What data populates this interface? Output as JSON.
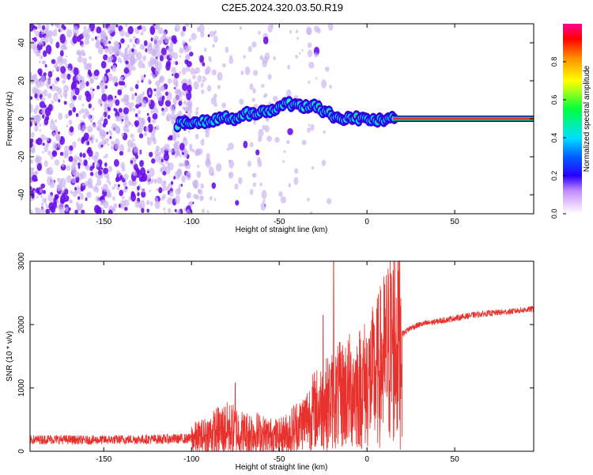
{
  "title": "C2E5.2024.320.03.50.R19",
  "colors": {
    "snr_line": "#e8302c",
    "ridge_core": "#e8302c",
    "scatter_light": "#c9b0f0",
    "scatter_dark": "#6a10e8"
  },
  "chart_data": [
    {
      "type": "heatmap",
      "title": "C2E5.2024.320.03.50.R19",
      "xlabel": "Height of straight line (km)",
      "ylabel": "Frequency (Hz)",
      "xlim": [
        -192,
        95
      ],
      "ylim": [
        -50,
        50
      ],
      "x_ticks": [
        -150,
        -100,
        -50,
        0,
        50
      ],
      "x_tick_labels": [
        "-150",
        "-100",
        "-50",
        "0",
        "50"
      ],
      "y_ticks": [
        -40,
        -20,
        0,
        20,
        40
      ],
      "y_tick_labels": [
        "-40",
        "-20",
        "0",
        "20",
        "40"
      ],
      "colorbar": {
        "label": "Normalized spectral amplitude",
        "range": [
          0,
          1
        ],
        "ticks": [
          0.0,
          0.2,
          0.4,
          0.6,
          0.8
        ],
        "tick_labels": [
          "0.0",
          "0.2",
          "0.4",
          "0.6",
          "0.8"
        ]
      },
      "ridge": {
        "description": "dominant frequency ridge",
        "x": [
          -108,
          -100,
          -95,
          -90,
          -85,
          -80,
          -75,
          -70,
          -65,
          -60,
          -55,
          -50,
          -45,
          -40,
          -35,
          -30,
          -25,
          -20,
          -15,
          -10,
          -5,
          0,
          5,
          10,
          15,
          20,
          50,
          95
        ],
        "y": [
          -3,
          -2,
          -1,
          -2,
          0,
          1,
          0,
          3,
          2,
          4,
          3,
          6,
          8,
          7,
          6,
          8,
          4,
          2,
          0,
          1,
          0,
          0,
          -1,
          -1,
          0,
          0,
          0,
          0
        ]
      }
    },
    {
      "type": "line",
      "xlabel": "Height of straight line (km)",
      "ylabel": "SNR (10 * v/v)",
      "xlim": [
        -192,
        95
      ],
      "ylim": [
        0,
        3000
      ],
      "x_ticks": [
        -150,
        -100,
        -50,
        0,
        50
      ],
      "x_tick_labels": [
        "-150",
        "-100",
        "-50",
        "0",
        "50"
      ],
      "y_ticks": [
        0,
        1000,
        2000,
        3000
      ],
      "y_tick_labels": [
        "0",
        "1000",
        "2000",
        "3000"
      ],
      "series": [
        {
          "name": "SNR",
          "x": [
            -192,
            -180,
            -160,
            -140,
            -120,
            -100,
            -95,
            -90,
            -85,
            -80,
            -75,
            -70,
            -65,
            -60,
            -55,
            -50,
            -45,
            -40,
            -35,
            -30,
            -25,
            -20,
            -15,
            -10,
            -5,
            0,
            5,
            10,
            15,
            20,
            25,
            30,
            40,
            50,
            60,
            70,
            80,
            95
          ],
          "y": [
            180,
            190,
            175,
            185,
            190,
            200,
            220,
            260,
            320,
            350,
            330,
            280,
            300,
            260,
            240,
            230,
            280,
            380,
            500,
            650,
            720,
            800,
            880,
            950,
            1000,
            1080,
            1200,
            1450,
            1700,
            1850,
            1950,
            2000,
            2050,
            2100,
            2150,
            2180,
            2200,
            2250
          ],
          "spikes": [
            {
              "x": -75,
              "y": 1080
            },
            {
              "x": -25,
              "y": 2150
            },
            {
              "x": -19,
              "y": 3000
            }
          ]
        }
      ]
    }
  ]
}
